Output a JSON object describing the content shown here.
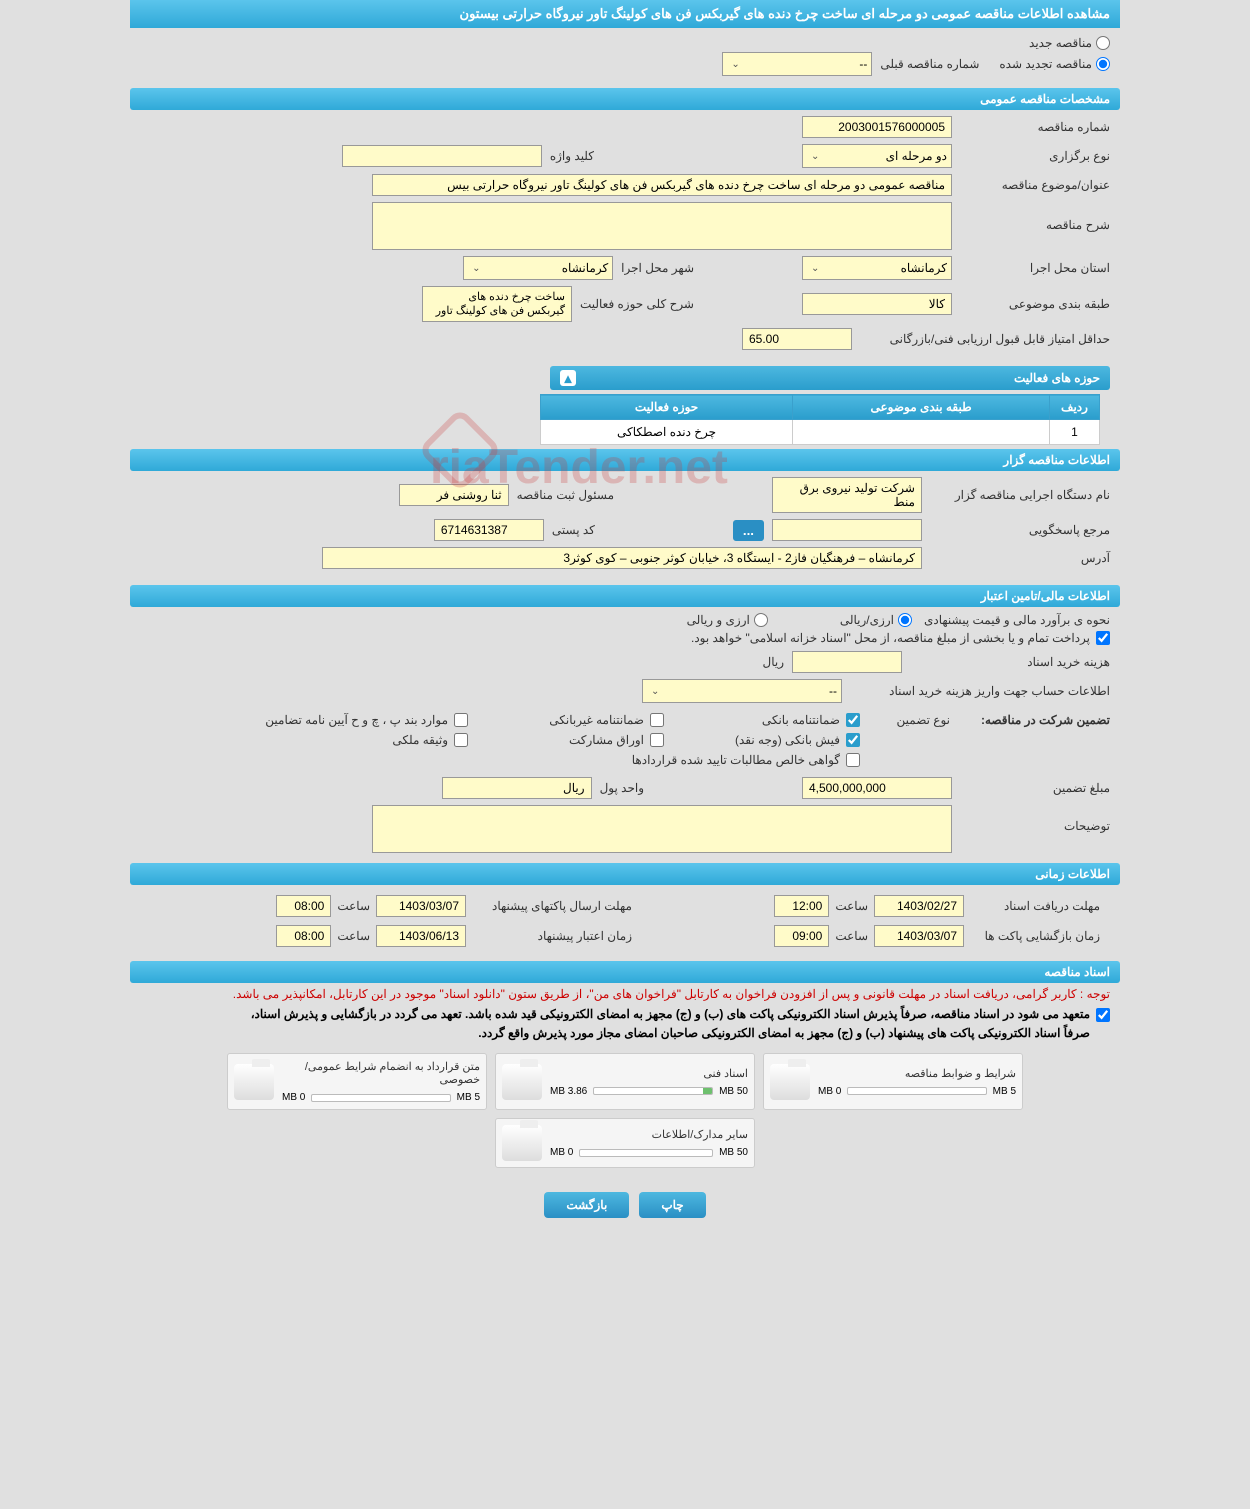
{
  "title": "مشاهده اطلاعات مناقصه عمومی دو مرحله ای ساخت چرخ دنده های گیربکس فن های کولینگ تاور نیروگاه حرارتی بیستون",
  "radios": {
    "new_tender": "مناقصه جدید",
    "renewed_tender": "مناقصه تجدید شده",
    "prev_tender_label": "شماره مناقصه قبلی",
    "prev_tender_value": "--"
  },
  "sections": {
    "general": "مشخصات مناقصه عمومی",
    "activities": "حوزه های فعالیت",
    "holder": "اطلاعات مناقصه گزار",
    "financial": "اطلاعات مالی/تامین اعتبار",
    "timing": "اطلاعات زمانی",
    "documents": "اسناد مناقصه"
  },
  "general": {
    "tender_no_label": "شماره مناقصه",
    "tender_no": "2003001576000005",
    "type_label": "نوع برگزاری",
    "type_value": "دو مرحله ای",
    "keyword_label": "کلید واژه",
    "keyword_value": "",
    "subject_label": "عنوان/موضوع مناقصه",
    "subject_value": "مناقصه عمومی دو مرحله ای ساخت چرخ دنده های گیربکس فن های کولینگ تاور نیروگاه حرارتی بیس",
    "desc_label": "شرح مناقصه",
    "province_label": "استان محل اجرا",
    "province_value": "کرمانشاه",
    "city_label": "شهر محل اجرا",
    "city_value": "کرمانشاه",
    "category_label": "طبقه بندی موضوعی",
    "category_value": "کالا",
    "activity_desc_label": "شرح کلی حوزه فعالیت",
    "activity_desc_value": "ساخت چرخ دنده های گیربکس فن های کولینگ تاور",
    "min_score_label": "حداقل امتیاز قابل قبول ارزیابی فنی/بازرگانی",
    "min_score_value": "65.00"
  },
  "activities_table": {
    "headers": {
      "row": "ردیف",
      "category": "طبقه بندی موضوعی",
      "activity": "حوزه فعالیت"
    },
    "rows": [
      {
        "row": "1",
        "category": "",
        "activity": "چرخ دنده اصطکاکی"
      }
    ]
  },
  "holder": {
    "org_label": "نام دستگاه اجرایی مناقصه گزار",
    "org_value": "شرکت تولید نیروی برق منط",
    "reg_label": "مسئول ثبت مناقصه",
    "reg_value": "ثنا روشنی فر",
    "contact_label": "مرجع پاسخگویی",
    "contact_value": "",
    "postal_label": "کد پستی",
    "postal_value": "6714631387",
    "address_label": "آدرس",
    "address_value": "کرمانشاه – فرهنگیان فاز2 - ایستگاه 3، خیابان کوثر جنوبی – کوی کوثر3"
  },
  "financial": {
    "estimate_label": "نحوه ی برآورد مالی و قیمت پیشنهادی",
    "opt_rial": "ارزی/ریالی",
    "opt_fx": "ارزی و ریالی",
    "payment_note": "پرداخت تمام و یا بخشی از مبلغ مناقصه، از محل \"اسناد خزانه اسلامی\" خواهد بود.",
    "doc_cost_label": "هزینه خرید اسناد",
    "doc_cost_unit": "ریال",
    "account_label": "اطلاعات حساب جهت واریز هزینه خرید اسناد",
    "account_value": "--",
    "guarantee_section": "تضمین شرکت در مناقصه:",
    "guarantee_type_label": "نوع تضمین",
    "cb_bank": "ضمانتنامه بانکی",
    "cb_nonbank": "ضمانتنامه غیربانکی",
    "cb_clauses": "موارد بند پ ، چ و ح آیین نامه تضامین",
    "cb_cash": "فیش بانکی (وجه نقد)",
    "cb_bonds": "اوراق مشارکت",
    "cb_property": "وثیقه ملکی",
    "cb_contracts": "گواهی خالص مطالبات تایید شده قراردادها",
    "amount_label": "مبلغ تضمین",
    "amount_value": "4,500,000,000",
    "currency_label": "واحد پول",
    "currency_value": "ریال",
    "notes_label": "توضیحات"
  },
  "timing": {
    "receive_label": "مهلت دریافت اسناد",
    "receive_date": "1403/02/27",
    "receive_time": "12:00",
    "send_label": "مهلت ارسال پاکتهای پیشنهاد",
    "send_date": "1403/03/07",
    "send_time": "08:00",
    "open_label": "زمان بازگشایی پاکت ها",
    "open_date": "1403/03/07",
    "open_time": "09:00",
    "validity_label": "زمان اعتبار پیشنهاد",
    "validity_date": "1403/06/13",
    "validity_time": "08:00",
    "hour_label": "ساعت"
  },
  "docs": {
    "note_red": "توجه : کاربر گرامی، دریافت اسناد در مهلت قانونی و پس از افزودن فراخوان به کارتابل \"فراخوان های من\"، از طریق ستون \"دانلود اسناد\" موجود در این کارتابل، امکانپذیر می باشد.",
    "note_black1": "متعهد می شود در اسناد مناقصه، صرفاً پذیرش اسناد الکترونیکی پاکت های (ب) و (ج) مجهز به امضای الکترونیکی قید شده باشد. تعهد می گردد در بازگشایی و پذیرش اسناد،",
    "note_black2": "صرفاً اسناد الکترونیکی پاکت های پیشنهاد (ب) و (ج) مجهز به امضای الکترونیکی صاحبان امضای مجاز مورد پذیرش واقع گردد.",
    "cards": [
      {
        "title": "شرایط و ضوابط مناقصه",
        "used": "0 MB",
        "total": "5 MB",
        "pct": 0
      },
      {
        "title": "اسناد فنی",
        "used": "3.86 MB",
        "total": "50 MB",
        "pct": 8
      },
      {
        "title": "متن قرارداد به انضمام شرایط عمومی/خصوصی",
        "used": "0 MB",
        "total": "5 MB",
        "pct": 0
      },
      {
        "title": "سایر مدارک/اطلاعات",
        "used": "0 MB",
        "total": "50 MB",
        "pct": 0
      }
    ]
  },
  "buttons": {
    "print": "چاپ",
    "back": "بازگشت"
  },
  "watermark": "riaTender.net"
}
